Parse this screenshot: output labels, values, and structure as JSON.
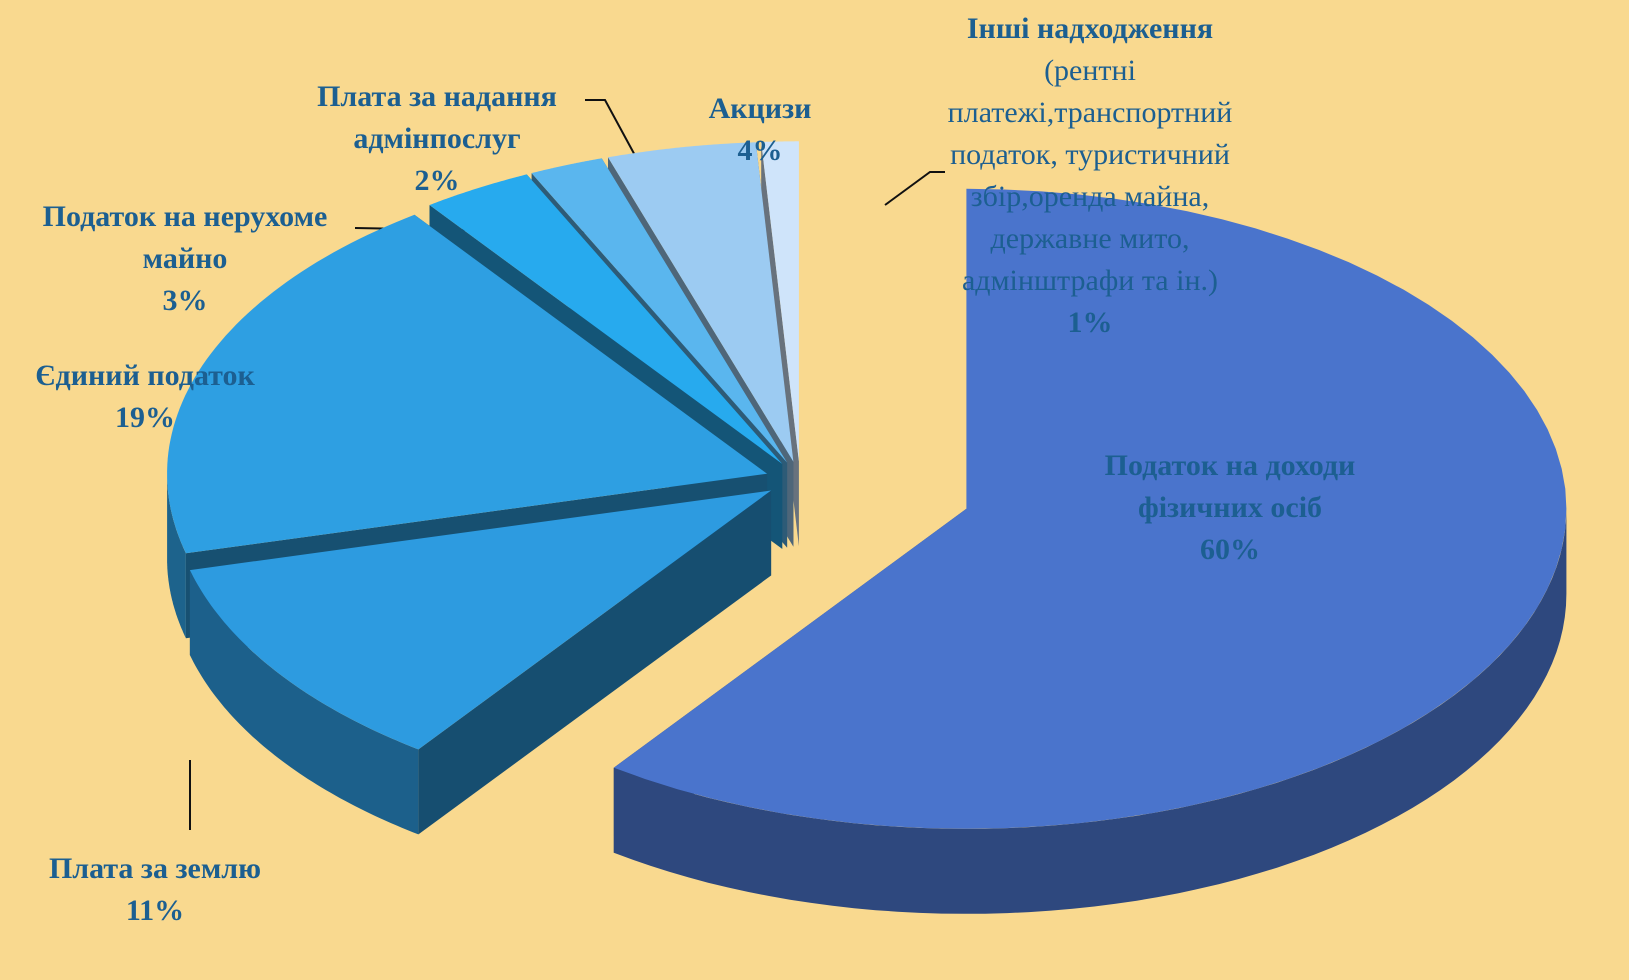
{
  "chart_data": {
    "type": "pie",
    "categories": [
      "Податок на доходи фізичних осіб",
      "Плата за землю",
      "Єдиний податок",
      "Податок на нерухоме майно",
      "Плата за надання адмінпослуг",
      "Акцизи",
      "Інші надходження"
    ],
    "values": [
      60,
      11,
      19,
      3,
      2,
      4,
      1
    ],
    "value_labels": [
      "60%",
      "11%",
      "19%",
      "3%",
      "2%",
      "4%",
      "1%"
    ],
    "colors": [
      "#4a74cc",
      "#2d9be0",
      "#2e9fe2",
      "#27aaee",
      "#5ab6ee",
      "#9ccbf2",
      "#cfe4fa"
    ],
    "annotations": [
      "(рентні платежі,транспортний податок, туристичний збір,оренда майна, державне мито, адмінштрафи та ін.)"
    ]
  }
}
